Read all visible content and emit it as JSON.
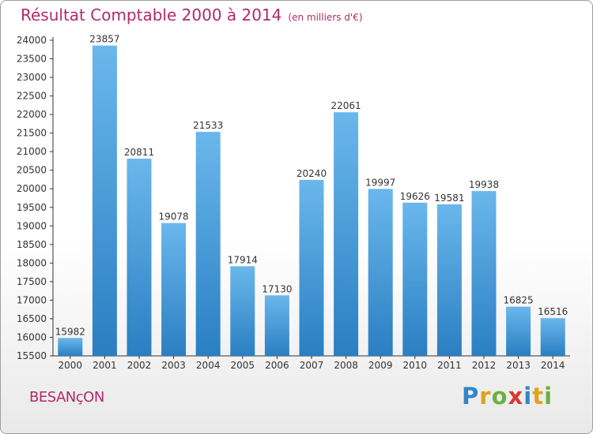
{
  "header": {
    "title": "Résultat Comptable 2000 à 2014",
    "subtitle": "(en milliers d'€)"
  },
  "footer": {
    "city": "BESANçON",
    "brand_letters": [
      {
        "char": "P",
        "color": "#2f86c8"
      },
      {
        "char": "r",
        "color": "#e0a21a"
      },
      {
        "char": "o",
        "color": "#6ab23e"
      },
      {
        "char": "x",
        "color": "#d83b2f"
      },
      {
        "char": "i",
        "color": "#2f86c8"
      },
      {
        "char": "t",
        "color": "#e0a21a"
      },
      {
        "char": "i",
        "color": "#6ab23e"
      }
    ]
  },
  "colors": {
    "bar_top": "#6ab7ec",
    "bar_bottom": "#2a7fc2",
    "title": "#b02a6a"
  },
  "chart_data": {
    "type": "bar",
    "title": "Résultat Comptable 2000 à 2014",
    "xlabel": "",
    "ylabel": "(en milliers d'€)",
    "categories": [
      "2000",
      "2001",
      "2002",
      "2003",
      "2004",
      "2005",
      "2006",
      "2007",
      "2008",
      "2009",
      "2010",
      "2011",
      "2012",
      "2013",
      "2014"
    ],
    "values": [
      15982,
      23857,
      20811,
      19078,
      21533,
      17914,
      17130,
      20240,
      22061,
      19997,
      19626,
      19581,
      19938,
      16825,
      16516
    ],
    "ylim": [
      15500,
      24000
    ],
    "yticks": [
      15500,
      16000,
      16500,
      17000,
      17500,
      18000,
      18500,
      19000,
      19500,
      20000,
      20500,
      21000,
      21500,
      22000,
      22500,
      23000,
      23500,
      24000
    ],
    "grid": false,
    "data_labels": true
  }
}
